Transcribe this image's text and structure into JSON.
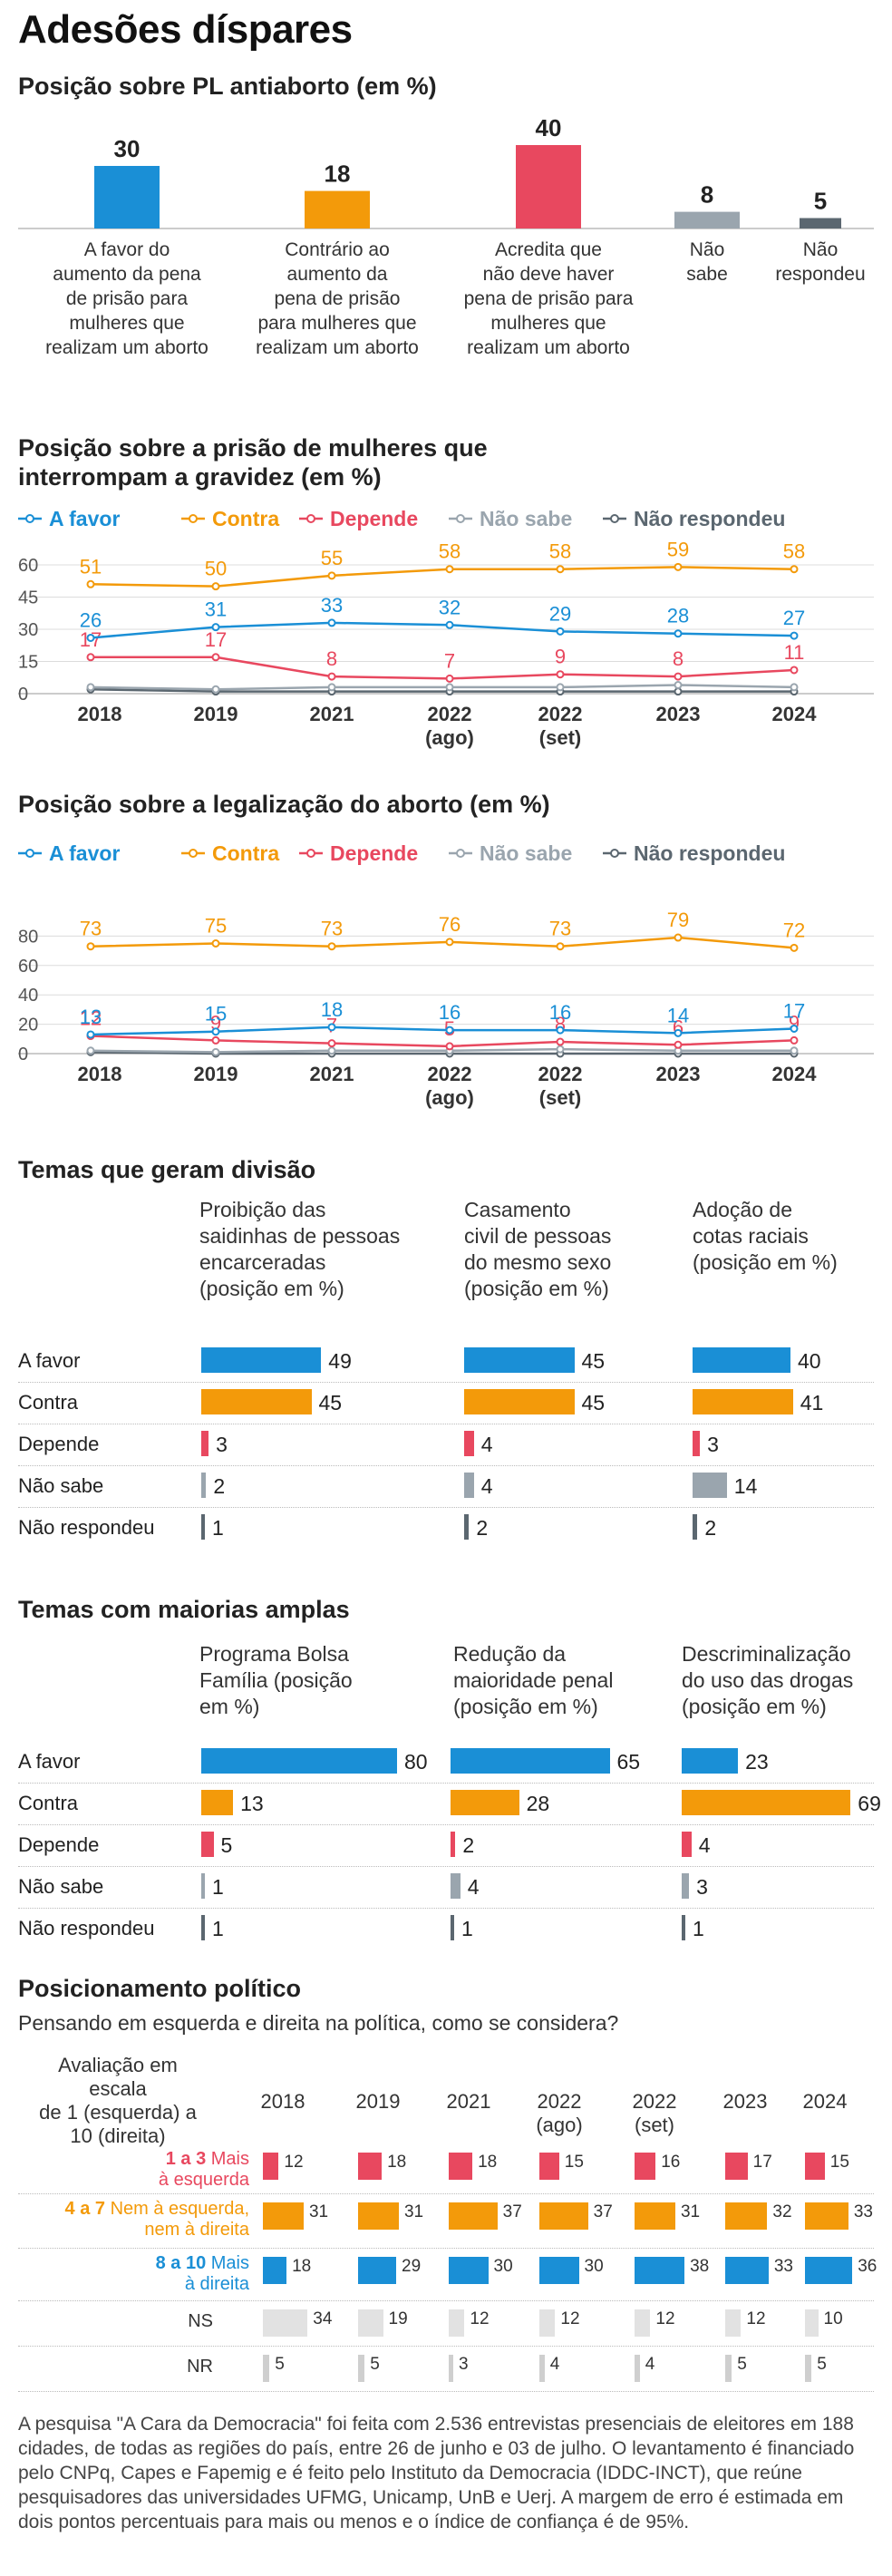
{
  "title": "Adesões díspares",
  "colors": {
    "afavor": "#1a8fd6",
    "contra": "#f39a0a",
    "depende": "#e8485f",
    "naosabe": "#9aa5ae",
    "naorespondeu": "#5b6770",
    "bar_gray": "#e0e0e0"
  },
  "s1": {
    "title": "Posição sobre PL antiaborto (em %)",
    "chart_data": {
      "type": "bar",
      "title": "Posição sobre PL antiaborto (em %)",
      "categories": [
        "A favor do aumento da pena de prisão para mulheres que realizam um aborto",
        "Contrário ao aumento da pena de prisão para mulheres que realizam um aborto",
        "Acredita que não deve haver pena de prisão para mulheres que realizam um aborto",
        "Não sabe",
        "Não responde"
      ],
      "values": [
        30,
        18,
        40,
        8,
        5
      ],
      "colors": [
        "#1a8fd6",
        "#f39a0a",
        "#e8485f",
        "#9aa5ae",
        "#5b6770"
      ]
    },
    "cat_lines": [
      [
        "A favor do",
        "aumento da pena",
        "de prisão para",
        "mulheres que",
        "realizam um aborto"
      ],
      [
        "Contrário ao",
        "aumento da",
        "pena de prisão",
        "para mulheres que",
        "realizam um aborto"
      ],
      [
        "Acredita que",
        "não deve haver",
        "pena de prisão para",
        "mulheres que",
        "realizam um aborto"
      ],
      [
        "Não",
        "sabe"
      ],
      [
        "Não",
        "respondeu"
      ]
    ]
  },
  "legend": [
    "A favor",
    "Contra",
    "Depende",
    "Não sabe",
    "Não respondeu"
  ],
  "s2": {
    "title_lines": [
      "Posição sobre a prisão de mulheres que",
      "interrompam a gravidez (em %)"
    ],
    "chart_data": {
      "type": "line",
      "title": "Posição sobre a prisão de mulheres que interrompam a gravidez (em %)",
      "x": [
        "2018",
        "2019",
        "2021",
        "2022 (ago)",
        "2022 (set)",
        "2023",
        "2024"
      ],
      "x_lines": [
        [
          "2018"
        ],
        [
          "2019"
        ],
        [
          "2021"
        ],
        [
          "2022",
          "(ago)"
        ],
        [
          "2022",
          "(set)"
        ],
        [
          "2023"
        ],
        [
          "2024"
        ]
      ],
      "yticks": [
        0,
        15,
        30,
        45,
        60
      ],
      "ylim": [
        0,
        60
      ],
      "series": [
        {
          "name": "A favor",
          "values": [
            26,
            31,
            33,
            32,
            29,
            28,
            27
          ],
          "labeled": true
        },
        {
          "name": "Contra",
          "values": [
            51,
            50,
            55,
            58,
            58,
            59,
            58
          ],
          "labeled": true
        },
        {
          "name": "Depende",
          "values": [
            17,
            17,
            8,
            7,
            9,
            8,
            11
          ],
          "labeled": true
        },
        {
          "name": "Não sabe",
          "values": [
            3,
            2,
            3,
            3,
            3,
            4,
            3
          ],
          "labeled": false
        },
        {
          "name": "Não respondeu",
          "values": [
            2,
            1,
            1,
            1,
            1,
            1,
            1
          ],
          "labeled": false
        }
      ]
    }
  },
  "s3": {
    "title": "Posição sobre a legalização do aborto (em %)",
    "chart_data": {
      "type": "line",
      "title": "Posição sobre a legalização do aborto (em %)",
      "x": [
        "2018",
        "2019",
        "2021",
        "2022 (ago)",
        "2022 (set)",
        "2023",
        "2024"
      ],
      "x_lines": [
        [
          "2018"
        ],
        [
          "2019"
        ],
        [
          "2021"
        ],
        [
          "2022",
          "(ago)"
        ],
        [
          "2022",
          "(set)"
        ],
        [
          "2023"
        ],
        [
          "2024"
        ]
      ],
      "yticks": [
        0,
        20,
        40,
        60,
        80
      ],
      "ylim": [
        0,
        100
      ],
      "series": [
        {
          "name": "A favor",
          "values": [
            13,
            15,
            18,
            16,
            16,
            14,
            17
          ],
          "labeled": true
        },
        {
          "name": "Contra",
          "values": [
            73,
            75,
            73,
            76,
            73,
            79,
            72
          ],
          "labeled": true
        },
        {
          "name": "Depende",
          "values": [
            12,
            9,
            7,
            5,
            8,
            6,
            9
          ],
          "labeled": true
        },
        {
          "name": "Não sabe",
          "values": [
            2,
            1,
            2,
            2,
            3,
            2,
            2
          ],
          "labeled": false
        },
        {
          "name": "Não respondeu",
          "values": [
            1,
            0,
            0,
            0,
            0,
            0,
            0
          ],
          "labeled": false
        }
      ]
    }
  },
  "s4": {
    "title": "Temas que geram divisão",
    "rows": [
      "A favor",
      "Contra",
      "Depende",
      "Não sabe",
      "Não respondeu"
    ],
    "chart_data": {
      "type": "bar",
      "title": "Temas que geram divisão",
      "categories": [
        "A favor",
        "Contra",
        "Depende",
        "Não sabe",
        "Não respondeu"
      ],
      "series": [
        {
          "name": "Proibição das saidinhas de pessoas encarceradas (posição em %)",
          "values": [
            49,
            45,
            3,
            2,
            1
          ]
        },
        {
          "name": "Casamento civil de pessoas do mesmo sexo (posição em %)",
          "values": [
            45,
            45,
            4,
            4,
            2
          ]
        },
        {
          "name": "Adoção de cotas raciais (posição em %)",
          "values": [
            40,
            41,
            3,
            14,
            2
          ]
        }
      ]
    },
    "col_lines": [
      [
        "Proibição das",
        "saidinhas de pessoas",
        "encarceradas",
        "(posição em %)"
      ],
      [
        "Casamento",
        "civil de pessoas",
        "do mesmo sexo",
        "(posição em %)"
      ],
      [
        "Adoção de",
        "cotas raciais",
        "(posição em %)"
      ]
    ]
  },
  "s5": {
    "title": "Temas com maiorias amplas",
    "rows": [
      "A favor",
      "Contra",
      "Depende",
      "Não sabe",
      "Não respondeu"
    ],
    "chart_data": {
      "type": "bar",
      "title": "Temas com maiorias amplas",
      "categories": [
        "A favor",
        "Contra",
        "Depende",
        "Não sabe",
        "Não respondeu"
      ],
      "series": [
        {
          "name": "Programa Bolsa Família (posição em %)",
          "values": [
            80,
            13,
            5,
            1,
            1
          ]
        },
        {
          "name": "Redução da maioridade penal (posição em %)",
          "values": [
            65,
            28,
            2,
            4,
            1
          ]
        },
        {
          "name": "Descriminalização do uso das drogas (posição em %)",
          "values": [
            23,
            69,
            4,
            3,
            1
          ]
        }
      ]
    },
    "col_lines": [
      [
        "Programa Bolsa",
        "Família (posição",
        "em %)"
      ],
      [
        "Redução da",
        "maioridade penal",
        "(posição em %)"
      ],
      [
        "Descriminalização",
        "do uso das drogas",
        "(posição em %)"
      ]
    ]
  },
  "s6": {
    "title": "Posicionamento político",
    "subtitle": "Pensando em esquerda e direita na política, como se considera?",
    "scale_lines": [
      "Avaliação em escala",
      "de 1 (esquerda) a",
      "10 (direita)"
    ],
    "year_lines": [
      [
        "2018"
      ],
      [
        "2019"
      ],
      [
        "2021"
      ],
      [
        "2022",
        "(ago)"
      ],
      [
        "2022",
        "(set)"
      ],
      [
        "2023"
      ],
      [
        "2024"
      ]
    ],
    "row_labels": [
      {
        "range": "1 a 3",
        "desc": [
          "Mais",
          "à esquerda"
        ],
        "color": "#e8485f"
      },
      {
        "range": "4 a 7",
        "desc": [
          "Nem à esquerda,",
          "nem à direita"
        ],
        "color": "#f39a0a"
      },
      {
        "range": "8 a 10",
        "desc": [
          "Mais",
          "à direita"
        ],
        "color": "#1a8fd6"
      },
      {
        "range": "NS",
        "desc": [],
        "color": "#e0e0e0"
      },
      {
        "range": "NR",
        "desc": [],
        "color": "#cfcfcf"
      }
    ],
    "chart_data": {
      "type": "bar",
      "title": "Posicionamento político",
      "categories": [
        "2018",
        "2019",
        "2021",
        "2022 (ago)",
        "2022 (set)",
        "2023",
        "2024"
      ],
      "series": [
        {
          "name": "1 a 3 Mais à esquerda",
          "values": [
            12,
            18,
            18,
            15,
            16,
            17,
            15
          ]
        },
        {
          "name": "4 a 7 Nem à esquerda, nem à direita",
          "values": [
            31,
            31,
            37,
            37,
            31,
            32,
            33
          ]
        },
        {
          "name": "8 a 10 Mais à direita",
          "values": [
            18,
            29,
            30,
            30,
            38,
            33,
            36
          ]
        },
        {
          "name": "NS",
          "values": [
            34,
            19,
            12,
            12,
            12,
            12,
            10
          ]
        },
        {
          "name": "NR",
          "values": [
            5,
            5,
            3,
            4,
            4,
            5,
            5
          ]
        }
      ]
    }
  },
  "footnote": "A pesquisa \"A Cara da Democracia\" foi feita com 2.536 entrevistas  presenciais de eleitores em 188 cidades, de todas as regiões do país, entre 26 de junho e 03 de julho. O levantamento é financiado pelo CNPq, Capes e Fapemig e é feito pelo Instituto da Democracia (IDDC-INCT), que reúne pesquisadores das universidades UFMG, Unicamp, UnB e Uerj. A margem de erro é estimada em dois pontos percentuais para mais ou menos e o índice de confiança é de 95%."
}
